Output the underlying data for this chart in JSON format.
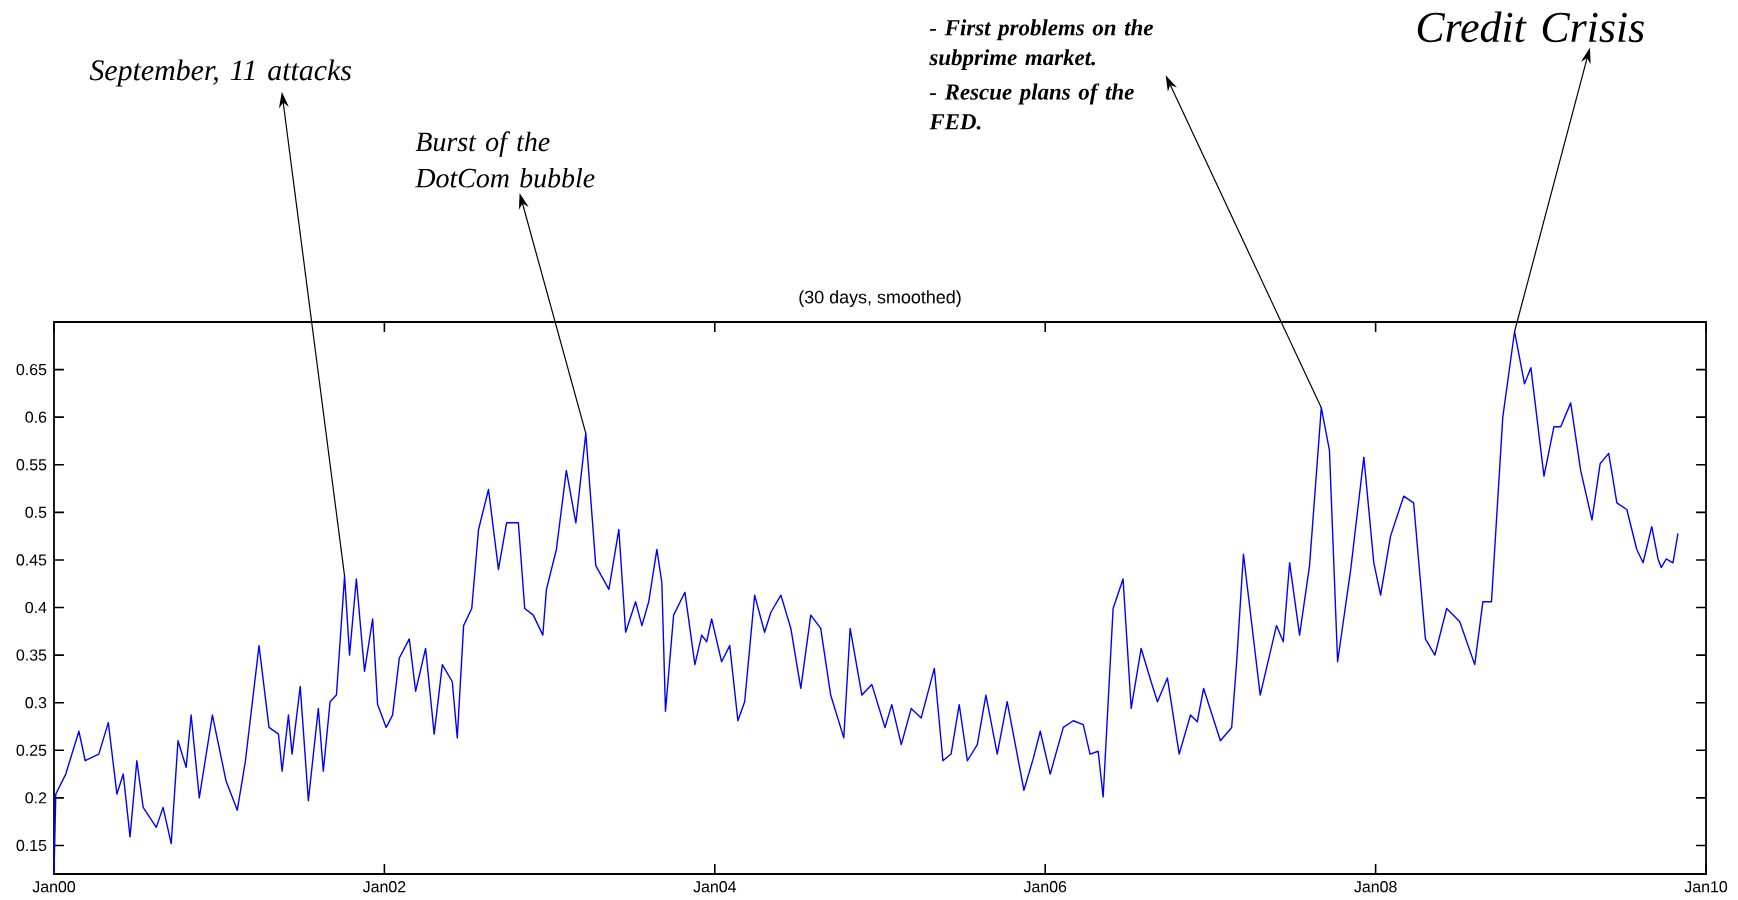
{
  "chart_data": {
    "type": "line",
    "title": "(30 days, smoothed)",
    "xlim": [
      "2000-01-01",
      "2010-01-01"
    ],
    "ylim": [
      0.12,
      0.7
    ],
    "xticks": [
      {
        "value": "2000-01-01",
        "label": "Jan00"
      },
      {
        "value": "2002-01-01",
        "label": "Jan02"
      },
      {
        "value": "2004-01-01",
        "label": "Jan04"
      },
      {
        "value": "2006-01-01",
        "label": "Jan06"
      },
      {
        "value": "2008-01-01",
        "label": "Jan08"
      },
      {
        "value": "2010-01-01",
        "label": "Jan10"
      }
    ],
    "yticks": [
      0.15,
      0.2,
      0.25,
      0.3,
      0.35,
      0.4,
      0.45,
      0.5,
      0.55,
      0.6,
      0.65
    ],
    "marker": "none",
    "line_style": "solid",
    "annotations": [
      {
        "text": "September, 11 attacks",
        "x": "2001-10-05",
        "y": 0.433
      },
      {
        "text": "Burst of the DotCom bubble",
        "x": "2003-03-22",
        "y": 0.583
      },
      {
        "text": "- First problems on the subprime market.",
        "x": "2007-09-03",
        "y": 0.61
      },
      "- Rescue plans of the FED.",
      {
        "text": "Credit Crisis",
        "x": "2008-11-04",
        "y": 0.69
      }
    ],
    "series": [
      {
        "color": "#0000ff",
        "x": [
          "2000-01-01",
          "2000-01-05",
          "2000-01-27",
          "2000-02-25",
          "2000-03-11",
          "2000-04-10",
          "2000-05-01",
          "2000-05-20",
          "2000-06-03",
          "2000-06-18",
          "2000-07-03",
          "2000-07-17",
          "2000-08-15",
          "2000-08-30",
          "2000-09-17",
          "2000-10-02",
          "2000-10-20",
          "2000-10-31",
          "2000-11-18",
          "2000-12-17",
          "2001-01-16",
          "2001-02-10",
          "2001-02-28",
          "2001-03-30",
          "2001-04-21",
          "2001-05-12",
          "2001-05-20",
          "2001-06-03",
          "2001-06-11",
          "2001-06-29",
          "2001-07-17",
          "2001-08-08",
          "2001-08-19",
          "2001-09-03",
          "2001-09-17",
          "2001-10-05",
          "2001-10-16",
          "2001-10-31",
          "2001-11-18",
          "2001-12-06",
          "2001-12-17",
          "2002-01-05",
          "2002-01-19",
          "2002-02-03",
          "2002-02-25",
          "2002-03-11",
          "2002-04-02",
          "2002-04-21",
          "2002-05-09",
          "2002-05-31",
          "2002-06-11",
          "2002-06-25",
          "2002-07-13",
          "2002-07-28",
          "2002-08-19",
          "2002-09-10",
          "2002-09-28",
          "2002-10-24",
          "2002-11-07",
          "2002-11-26",
          "2002-12-17",
          "2002-12-25",
          "2003-01-16",
          "2003-02-07",
          "2003-02-28",
          "2003-03-22",
          "2003-04-13",
          "2003-05-12",
          "2003-06-03",
          "2003-06-18",
          "2003-07-10",
          "2003-07-24",
          "2003-08-08",
          "2003-08-26",
          "2003-09-06",
          "2003-09-14",
          "2003-10-02",
          "2003-10-27",
          "2003-11-18",
          "2003-12-03",
          "2003-12-14",
          "2003-12-25",
          "2004-01-16",
          "2004-02-03",
          "2004-02-21",
          "2004-03-08",
          "2004-03-30",
          "2004-04-21",
          "2004-05-05",
          "2004-05-27",
          "2004-06-18",
          "2004-07-10",
          "2004-08-01",
          "2004-08-23",
          "2004-09-14",
          "2004-10-13",
          "2004-10-27",
          "2004-11-22",
          "2004-12-14",
          "2005-01-12",
          "2005-01-27",
          "2005-02-17",
          "2005-03-11",
          "2005-04-02",
          "2005-05-01",
          "2005-05-20",
          "2005-06-07",
          "2005-06-25",
          "2005-07-13",
          "2005-08-04",
          "2005-08-23",
          "2005-09-17",
          "2005-10-09",
          "2005-11-15",
          "2005-12-06",
          "2005-12-21",
          "2006-01-12",
          "2006-02-10",
          "2006-03-04",
          "2006-03-26",
          "2006-04-10",
          "2006-04-28",
          "2006-05-09",
          "2006-05-31",
          "2006-06-22",
          "2006-07-10",
          "2006-08-01",
          "2006-08-23",
          "2006-09-06",
          "2006-09-28",
          "2006-10-24",
          "2006-11-18",
          "2006-12-03",
          "2006-12-17",
          "2007-01-23",
          "2007-02-17",
          "2007-02-28",
          "2007-03-15",
          "2007-04-21",
          "2007-05-27",
          "2007-06-11",
          "2007-06-25",
          "2007-07-17",
          "2007-08-08",
          "2007-09-03",
          "2007-09-21",
          "2007-10-09",
          "2007-11-07",
          "2007-12-06",
          "2007-12-28",
          "2008-01-12",
          "2008-02-03",
          "2008-03-04",
          "2008-03-26",
          "2008-04-21",
          "2008-05-12",
          "2008-06-07",
          "2008-07-06",
          "2008-08-08",
          "2008-08-26",
          "2008-09-14",
          "2008-10-09",
          "2008-11-04",
          "2008-11-26",
          "2008-12-10",
          "2009-01-08",
          "2009-01-30",
          "2009-02-14",
          "2009-03-08",
          "2009-03-30",
          "2009-04-24",
          "2009-05-12",
          "2009-05-31",
          "2009-06-18",
          "2009-07-10",
          "2009-08-01",
          "2009-08-15",
          "2009-09-03",
          "2009-09-17",
          "2009-09-24",
          "2009-10-05",
          "2009-10-20",
          "2009-10-31"
        ],
        "values": [
          0.121,
          0.204,
          0.225,
          0.27,
          0.239,
          0.246,
          0.279,
          0.204,
          0.225,
          0.159,
          0.239,
          0.19,
          0.169,
          0.19,
          0.152,
          0.26,
          0.232,
          0.287,
          0.2,
          0.287,
          0.218,
          0.187,
          0.239,
          0.36,
          0.274,
          0.267,
          0.228,
          0.287,
          0.246,
          0.317,
          0.197,
          0.294,
          0.228,
          0.301,
          0.308,
          0.433,
          0.35,
          0.43,
          0.333,
          0.388,
          0.298,
          0.274,
          0.287,
          0.347,
          0.367,
          0.312,
          0.357,
          0.267,
          0.34,
          0.322,
          0.263,
          0.381,
          0.399,
          0.482,
          0.524,
          0.44,
          0.489,
          0.489,
          0.399,
          0.392,
          0.371,
          0.419,
          0.461,
          0.544,
          0.489,
          0.583,
          0.444,
          0.419,
          0.482,
          0.374,
          0.406,
          0.381,
          0.406,
          0.461,
          0.426,
          0.291,
          0.392,
          0.416,
          0.34,
          0.371,
          0.364,
          0.388,
          0.343,
          0.36,
          0.281,
          0.301,
          0.413,
          0.374,
          0.395,
          0.413,
          0.378,
          0.315,
          0.392,
          0.378,
          0.308,
          0.263,
          0.378,
          0.308,
          0.319,
          0.274,
          0.298,
          0.256,
          0.294,
          0.284,
          0.336,
          0.239,
          0.246,
          0.298,
          0.239,
          0.256,
          0.308,
          0.246,
          0.301,
          0.208,
          0.242,
          0.27,
          0.225,
          0.274,
          0.281,
          0.277,
          0.246,
          0.249,
          0.201,
          0.399,
          0.43,
          0.294,
          0.357,
          0.322,
          0.301,
          0.326,
          0.246,
          0.287,
          0.28,
          0.315,
          0.26,
          0.274,
          0.343,
          0.456,
          0.308,
          0.381,
          0.364,
          0.447,
          0.371,
          0.444,
          0.61,
          0.565,
          0.343,
          0.44,
          0.558,
          0.447,
          0.413,
          0.475,
          0.517,
          0.51,
          0.367,
          0.35,
          0.399,
          0.385,
          0.34,
          0.406,
          0.406,
          0.6,
          0.69,
          0.635,
          0.652,
          0.538,
          0.59,
          0.59,
          0.615,
          0.544,
          0.492,
          0.551,
          0.562,
          0.51,
          0.503,
          0.461,
          0.447,
          0.485,
          0.451,
          0.442,
          0.451,
          0.447,
          0.478
        ]
      }
    ]
  }
}
